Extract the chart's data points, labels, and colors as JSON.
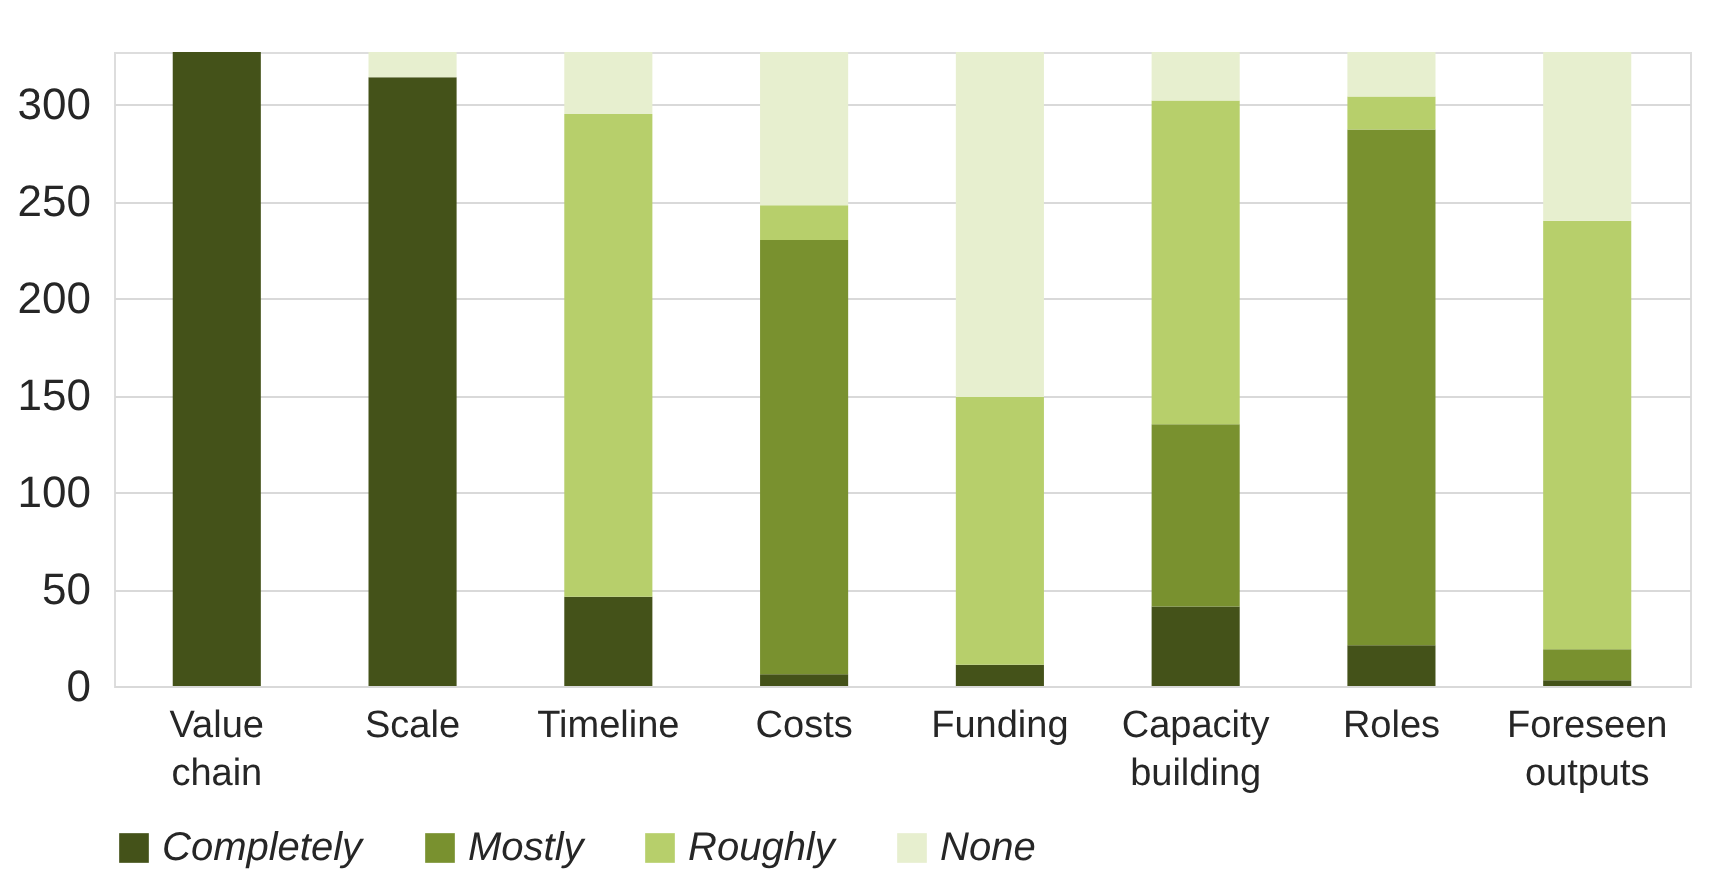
{
  "chart_data": {
    "type": "bar",
    "stacked": true,
    "categories": [
      "Value chain",
      "Scale",
      "Timeline",
      "Costs",
      "Funding",
      "Capacity building",
      "Roles",
      "Foreseen outputs"
    ],
    "series": [
      {
        "name": "Completely",
        "color": "#445219",
        "values": [
          327,
          314,
          46,
          6,
          11,
          41,
          21,
          3
        ]
      },
      {
        "name": "Mostly",
        "color": "#79912f",
        "values": [
          0,
          0,
          0,
          224,
          0,
          94,
          266,
          16
        ]
      },
      {
        "name": "Roughly",
        "color": "#b7cf6b",
        "values": [
          0,
          0,
          249,
          18,
          138,
          167,
          17,
          221
        ]
      },
      {
        "name": "None",
        "color": "#e7efcf",
        "values": [
          0,
          13,
          32,
          79,
          178,
          25,
          23,
          87
        ]
      }
    ],
    "ylim": [
      0,
      327
    ],
    "yticks": [
      0,
      50,
      100,
      150,
      200,
      250,
      300
    ],
    "grid": "y",
    "legend": "bottom"
  }
}
